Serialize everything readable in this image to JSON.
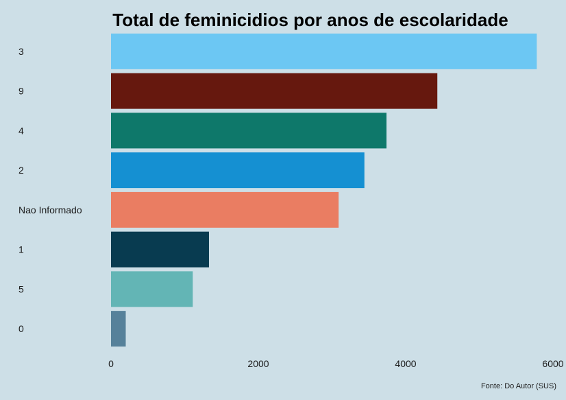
{
  "chart_data": {
    "type": "bar",
    "orientation": "horizontal",
    "title": "Total de feminicidios por anos de escolaridade",
    "caption": "Fonte: Do Autor (SUS)",
    "xlabel": "",
    "ylabel": "",
    "xlim": [
      0,
      6000
    ],
    "xticks": [
      "0",
      "2000",
      "4000",
      "6000"
    ],
    "grid": false,
    "legend": "none",
    "categories": [
      "3",
      "9",
      "4",
      "2",
      "Nao Informado",
      "1",
      "5",
      "0"
    ],
    "values": [
      5780,
      4430,
      3740,
      3440,
      3090,
      1330,
      1110,
      200
    ],
    "colors": [
      "#6cc7f3",
      "#66180e",
      "#0e786a",
      "#1590d2",
      "#ea7d62",
      "#083b50",
      "#63b5b5",
      "#56819a"
    ]
  }
}
